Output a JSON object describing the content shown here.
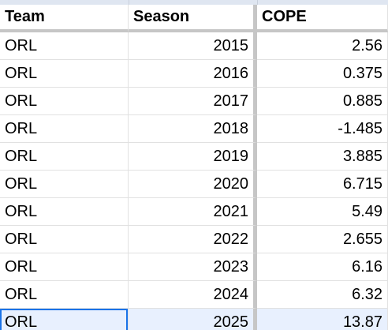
{
  "table": {
    "headers": {
      "team": "Team",
      "season": "Season",
      "cope": "COPE"
    },
    "rows": [
      {
        "team": "ORL",
        "season": "2015",
        "cope": "2.56"
      },
      {
        "team": "ORL",
        "season": "2016",
        "cope": "0.375"
      },
      {
        "team": "ORL",
        "season": "2017",
        "cope": "0.885"
      },
      {
        "team": "ORL",
        "season": "2018",
        "cope": "-1.485"
      },
      {
        "team": "ORL",
        "season": "2019",
        "cope": "3.885"
      },
      {
        "team": "ORL",
        "season": "2020",
        "cope": "6.715"
      },
      {
        "team": "ORL",
        "season": "2021",
        "cope": "5.49"
      },
      {
        "team": "ORL",
        "season": "2022",
        "cope": "2.655"
      },
      {
        "team": "ORL",
        "season": "2023",
        "cope": "6.16"
      },
      {
        "team": "ORL",
        "season": "2024",
        "cope": "6.32"
      },
      {
        "team": "ORL",
        "season": "2025",
        "cope": "13.87"
      }
    ],
    "selected_row_index": 10
  },
  "colors": {
    "selection_fill": "#e8f0fe",
    "selection_border": "#1a73e8",
    "header_divider": "#c6c6c6",
    "gridline": "#e1e1e1"
  }
}
